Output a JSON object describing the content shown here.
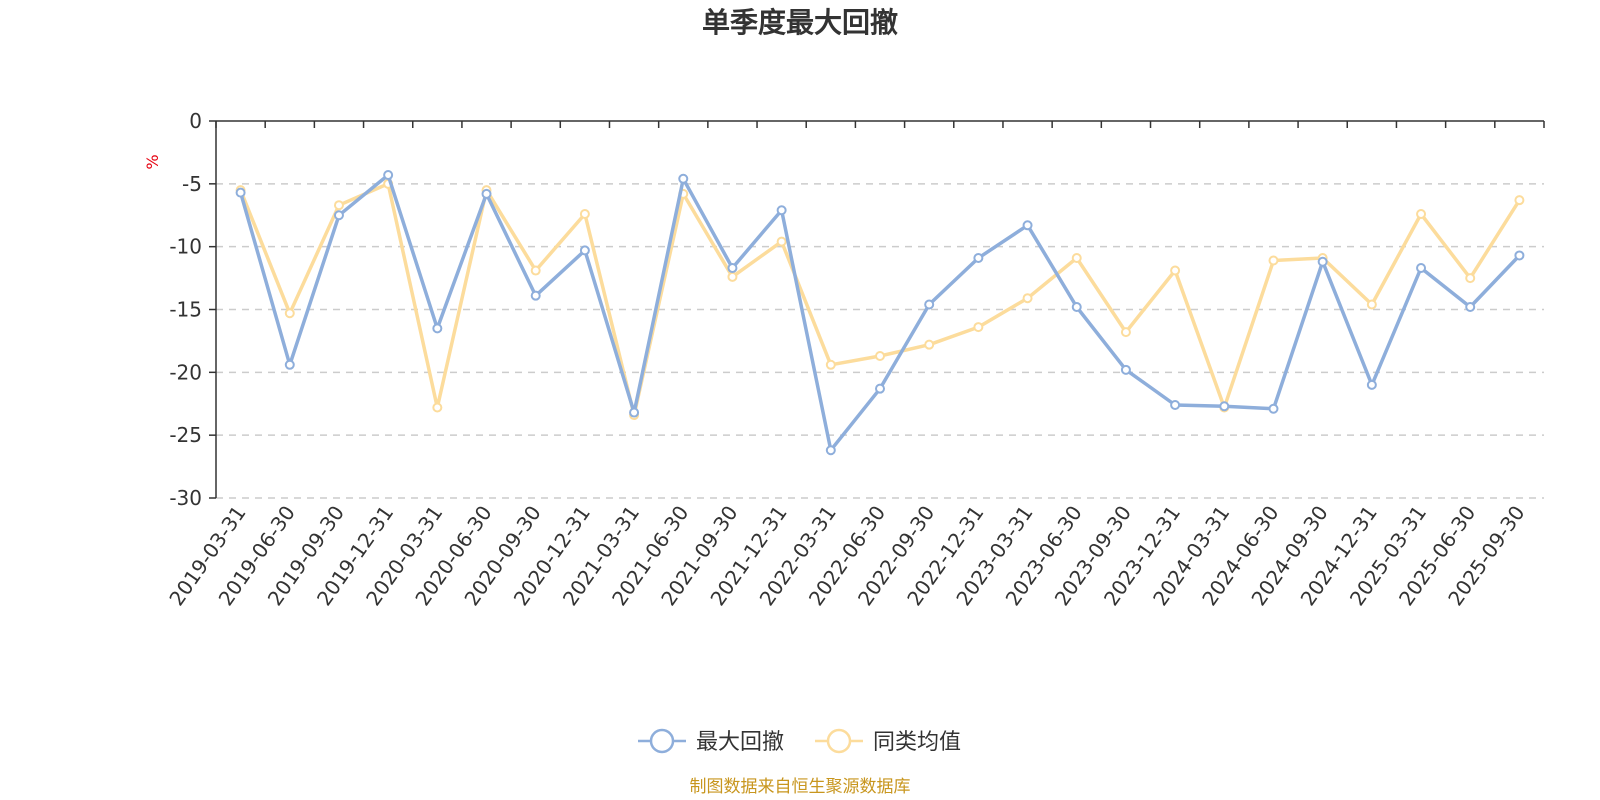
{
  "chart_data": {
    "type": "line",
    "title": "单季度最大回撤",
    "unit_label": "%",
    "ylim": [
      -30,
      0
    ],
    "yticks": [
      0,
      -5,
      -10,
      -15,
      -20,
      -25,
      -30
    ],
    "grid": true,
    "legend_position": "bottom",
    "categories": [
      "2019-03-31",
      "2019-06-30",
      "2019-09-30",
      "2019-12-31",
      "2020-03-31",
      "2020-06-30",
      "2020-09-30",
      "2020-12-31",
      "2021-03-31",
      "2021-06-30",
      "2021-09-30",
      "2021-12-31",
      "2022-03-31",
      "2022-06-30",
      "2022-09-30",
      "2022-12-31",
      "2023-03-31",
      "2023-06-30",
      "2023-09-30",
      "2023-12-31",
      "2024-03-31",
      "2024-06-30",
      "2024-09-30",
      "2024-12-31",
      "2025-03-31",
      "2025-06-30",
      "2025-09-30"
    ],
    "series": [
      {
        "name": "最大回撤",
        "color": "#8eaedb",
        "values": [
          -5.7,
          -19.4,
          -7.5,
          -4.3,
          -16.5,
          -5.8,
          -13.9,
          -10.3,
          -23.2,
          -4.6,
          -11.7,
          -7.1,
          -26.2,
          -21.3,
          -14.6,
          -10.9,
          -8.3,
          -14.8,
          -19.8,
          -22.6,
          -22.7,
          -22.9,
          -11.2,
          -21.0,
          -11.7,
          -14.8,
          -10.7
        ]
      },
      {
        "name": "同类均值",
        "color": "#fcdc9c",
        "values": [
          -5.5,
          -15.3,
          -6.7,
          -5.0,
          -22.8,
          -5.5,
          -11.9,
          -7.4,
          -23.4,
          -5.8,
          -12.4,
          -9.6,
          -19.4,
          -18.7,
          -17.8,
          -16.4,
          -14.1,
          -10.9,
          -16.8,
          -11.9,
          -22.8,
          -11.1,
          -10.9,
          -14.6,
          -7.4,
          -12.5,
          -6.3
        ]
      }
    ],
    "source": "制图数据来自恒生聚源数据库"
  }
}
